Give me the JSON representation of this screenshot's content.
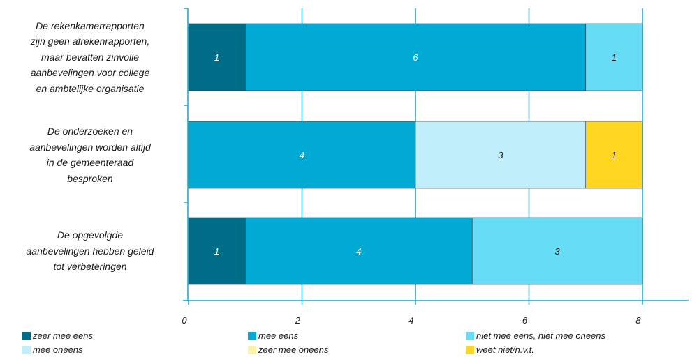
{
  "chart_data": {
    "type": "bar",
    "orientation": "horizontal",
    "stacked": true,
    "categories": [
      [
        "De rekenkamerrapporten",
        "zijn geen afrekenrapporten,",
        "maar bevatten zinvolle",
        "aanbevelingen voor college",
        "en ambtelijke organisatie"
      ],
      [
        "De onderzoeken en",
        "aanbevelingen worden altijd",
        "in de gemeenteraad",
        "besproken"
      ],
      [
        "De opgevolgde",
        "aanbevelingen hebben geleid",
        "tot verbeteringen"
      ]
    ],
    "series": [
      {
        "name": "zeer mee eens",
        "color": "#006D88",
        "label_color": "#ffffff",
        "values": [
          1,
          0,
          1
        ]
      },
      {
        "name": "mee eens",
        "color": "#00AAD4",
        "label_color": "#ffffff",
        "values": [
          6,
          4,
          4
        ]
      },
      {
        "name": "niet mee eens, niet mee oneens",
        "color": "#66DDF5",
        "label_color": "#1a1a1a",
        "values": [
          1,
          0,
          3
        ]
      },
      {
        "name": "mee oneens",
        "color": "#BFEDFA",
        "label_color": "#1a1a1a",
        "values": [
          0,
          3,
          0
        ]
      },
      {
        "name": "zeer mee oneens",
        "color": "#FCEFA6",
        "label_color": "#1a1a1a",
        "values": [
          0,
          0,
          0
        ]
      },
      {
        "name": "weet niet/n.v.t.",
        "color": "#FFD61F",
        "label_color": "#1a1a1a",
        "values": [
          0,
          1,
          0
        ]
      }
    ],
    "xlim": [
      0,
      8
    ],
    "xticks": [
      "0",
      "2",
      "4",
      "6",
      "8"
    ],
    "grid": true,
    "grid_color": "#1AA3CC",
    "legend_position": "bottom"
  }
}
